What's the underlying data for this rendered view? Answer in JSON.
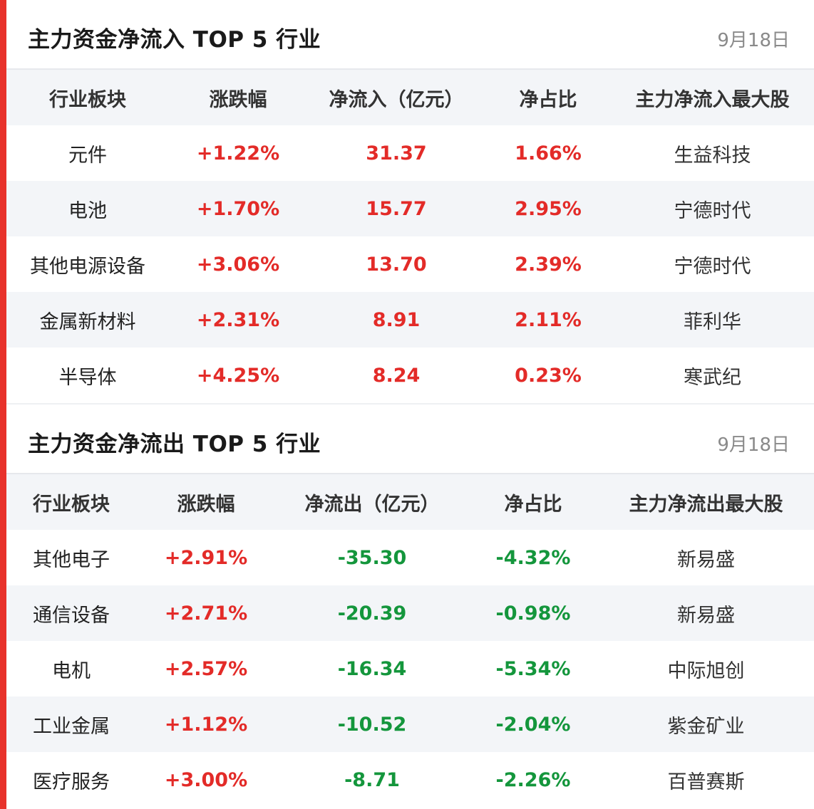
{
  "colors": {
    "accent": "#e8322b",
    "up": "#e32b28",
    "down": "#14963c",
    "stripe": "#f3f5f8"
  },
  "inflow": {
    "title": "主力资金净流入 TOP 5 行业",
    "date": "9月18日",
    "headers": [
      "行业板块",
      "涨跌幅",
      "净流入（亿元）",
      "净占比",
      "主力净流入最大股"
    ],
    "rows": [
      {
        "sector": "元件",
        "change": "+1.22%",
        "amount": "31.37",
        "ratio": "1.66%",
        "top_stock": "生益科技"
      },
      {
        "sector": "电池",
        "change": "+1.70%",
        "amount": "15.77",
        "ratio": "2.95%",
        "top_stock": "宁德时代"
      },
      {
        "sector": "其他电源设备",
        "change": "+3.06%",
        "amount": "13.70",
        "ratio": "2.39%",
        "top_stock": "宁德时代"
      },
      {
        "sector": "金属新材料",
        "change": "+2.31%",
        "amount": "8.91",
        "ratio": "2.11%",
        "top_stock": "菲利华"
      },
      {
        "sector": "半导体",
        "change": "+4.25%",
        "amount": "8.24",
        "ratio": "0.23%",
        "top_stock": "寒武纪"
      }
    ]
  },
  "outflow": {
    "title": "主力资金净流出 TOP 5 行业",
    "date": "9月18日",
    "headers": [
      "行业板块",
      "涨跌幅",
      "净流出（亿元）",
      "净占比",
      "主力净流出最大股"
    ],
    "rows": [
      {
        "sector": "其他电子",
        "change": "+2.91%",
        "amount": "-35.30",
        "ratio": "-4.32%",
        "top_stock": "新易盛"
      },
      {
        "sector": "通信设备",
        "change": "+2.71%",
        "amount": "-20.39",
        "ratio": "-0.98%",
        "top_stock": "新易盛"
      },
      {
        "sector": "电机",
        "change": "+2.57%",
        "amount": "-16.34",
        "ratio": "-5.34%",
        "top_stock": "中际旭创"
      },
      {
        "sector": "工业金属",
        "change": "+1.12%",
        "amount": "-10.52",
        "ratio": "-2.04%",
        "top_stock": "紫金矿业"
      },
      {
        "sector": "医疗服务",
        "change": "+3.00%",
        "amount": "-8.71",
        "ratio": "-2.26%",
        "top_stock": "百普赛斯"
      }
    ]
  }
}
